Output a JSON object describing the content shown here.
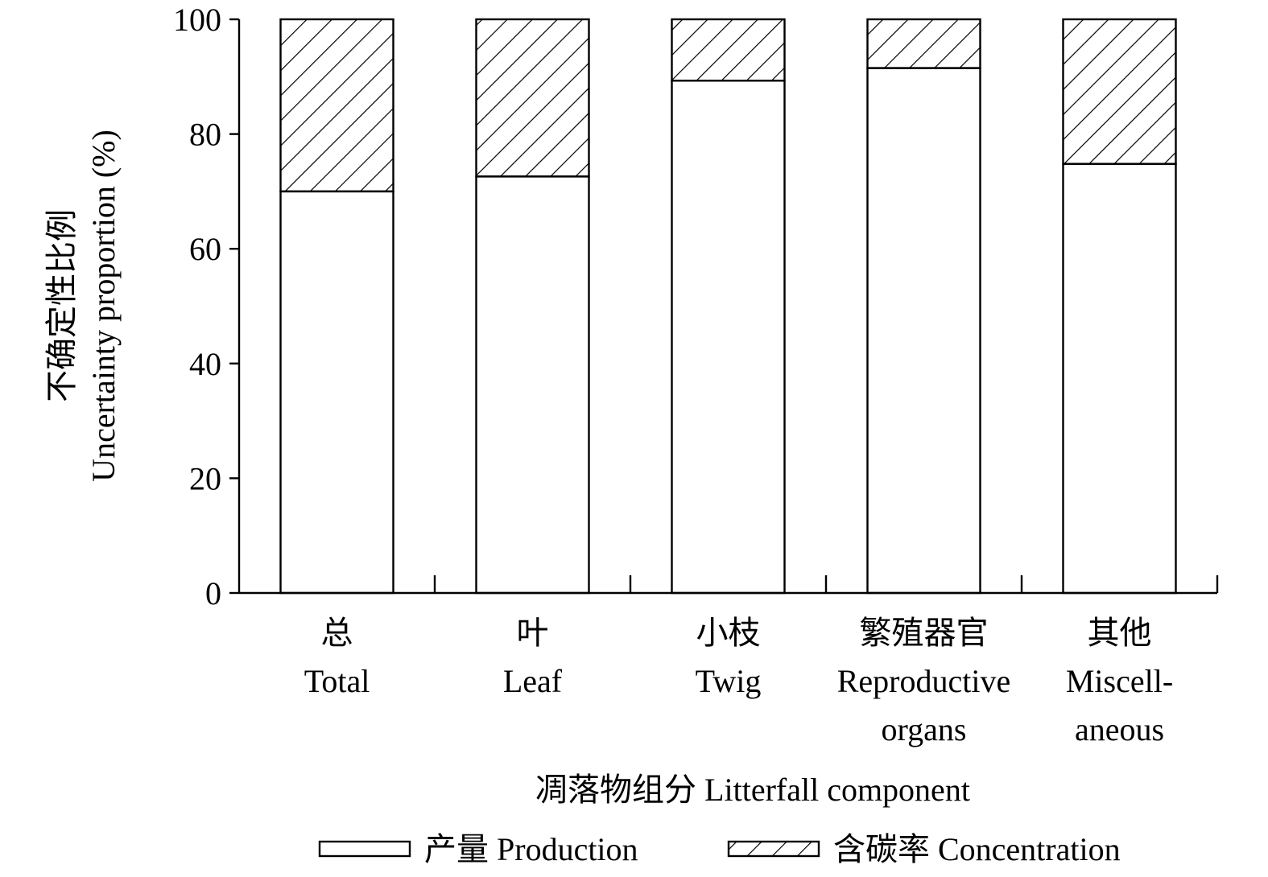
{
  "chart_data": {
    "type": "bar",
    "stacked": true,
    "categories": [
      [
        "总",
        "Total"
      ],
      [
        "叶",
        "Leaf"
      ],
      [
        "小枝",
        "Twig"
      ],
      [
        "繁殖器官",
        "Reproductive",
        "organs"
      ],
      [
        "其他",
        "Miscell-",
        "aneous"
      ]
    ],
    "series": [
      {
        "name": "产量 Production",
        "pattern": "none",
        "values": [
          70,
          72.6,
          89.3,
          91.5,
          74.8
        ]
      },
      {
        "name": "含碳率 Concentration",
        "pattern": "diagonal-hatch",
        "values": [
          30,
          27.4,
          10.7,
          8.5,
          25.2
        ]
      }
    ],
    "ylabel": [
      "不确定性比例",
      "Uncertainty proportion (%)"
    ],
    "xlabel": "凋落物组分 Litterfall component",
    "ylim": [
      0,
      100
    ],
    "yticks": [
      0,
      20,
      40,
      60,
      80,
      100
    ],
    "grid": false,
    "legend_position": "bottom",
    "colors": {
      "bar_fill": "#ffffff",
      "stroke": "#000000"
    }
  }
}
